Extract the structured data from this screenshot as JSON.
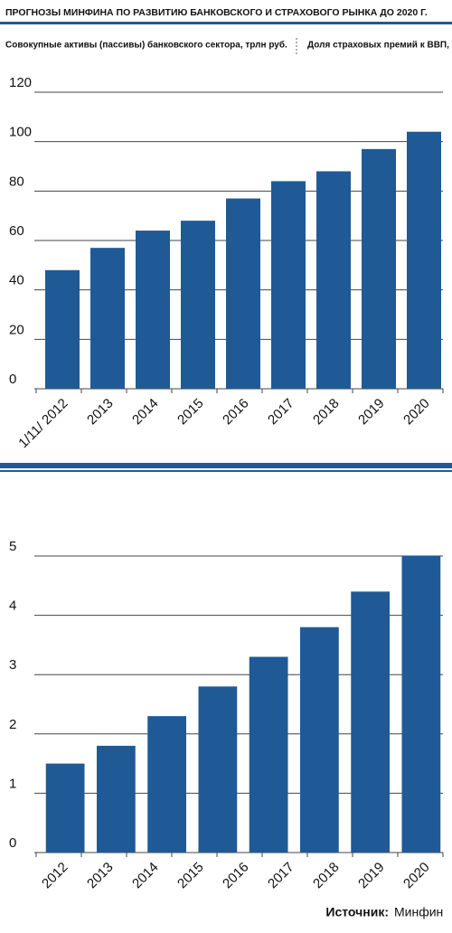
{
  "title": "ПРОГНОЗЫ МИНФИНА ПО РАЗВИТИЮ БАНКОВСКОГО И СТРАХОВОГО РЫНКА ДО 2020 Г.",
  "chart_data": [
    {
      "type": "bar",
      "title": "Совокупные активы (пассивы) банковского сектора, трлн руб.",
      "categories": [
        "1/11/ 2012",
        "2013",
        "2014",
        "2015",
        "2016",
        "2017",
        "2018",
        "2019",
        "2020"
      ],
      "values": [
        48,
        57,
        64,
        68,
        77,
        84,
        88,
        97,
        104
      ],
      "color": "#1f5a96",
      "ylim": [
        0,
        120
      ],
      "yticks": [
        0,
        20,
        40,
        60,
        80,
        100,
        120
      ],
      "grid": true
    },
    {
      "type": "bar",
      "title": "Доля страховых премий к ВВП, %",
      "categories": [
        "2012",
        "2013",
        "2014",
        "2015",
        "2016",
        "2017",
        "2018",
        "2019",
        "2020"
      ],
      "values": [
        1.5,
        1.8,
        2.3,
        2.8,
        3.3,
        3.8,
        4.4,
        null,
        5.0
      ],
      "color": "#1f5a96",
      "ylim": [
        0,
        5
      ],
      "yticks": [
        0,
        1,
        2,
        3,
        4,
        5
      ],
      "grid": true
    }
  ],
  "source": {
    "label": "Источник:",
    "value": "Минфин"
  }
}
